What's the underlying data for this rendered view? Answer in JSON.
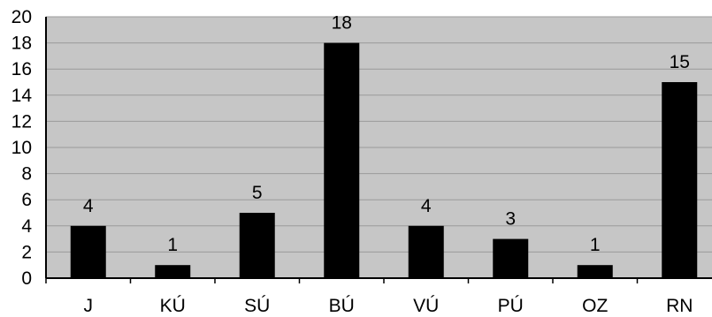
{
  "chart_data": {
    "type": "bar",
    "categories": [
      "J",
      "KÚ",
      "SÚ",
      "BÚ",
      "VÚ",
      "PÚ",
      "OZ",
      "RN"
    ],
    "values": [
      4,
      1,
      5,
      18,
      4,
      3,
      1,
      15
    ],
    "data_labels": [
      "4",
      "1",
      "5",
      "18",
      "4",
      "3",
      "1",
      "15"
    ],
    "yticks": [
      "0",
      "2",
      "4",
      "6",
      "8",
      "10",
      "12",
      "14",
      "16",
      "18",
      "20"
    ],
    "ylim": [
      0,
      20
    ],
    "ystep": 2,
    "grid": true,
    "legend": "none",
    "title": "",
    "xlabel": "",
    "ylabel": "",
    "colors": {
      "bar": "#000000",
      "plot_background": "#c6c6c6",
      "gridline": "#9a9a9a",
      "axis": "#000000"
    }
  }
}
